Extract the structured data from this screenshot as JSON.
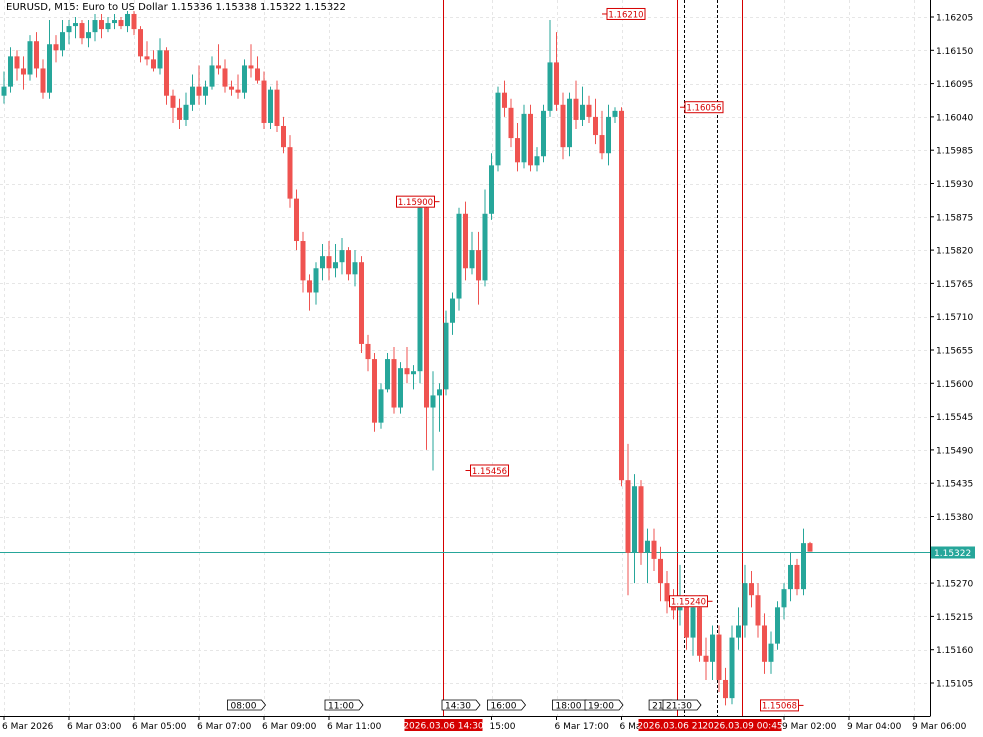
{
  "header": {
    "symbol_tf": "EURUSD, M15:",
    "description": "Euro to US Dollar",
    "ohlc": "1.15336 1.15338 1.15322 1.15322"
  },
  "colors": {
    "bull": "#26a69a",
    "bear": "#ef5350",
    "grid": "#e6e6e6",
    "current_line": "#26a69a",
    "event_line": "#d50000",
    "axis_text": "#000000"
  },
  "chart_data": {
    "type": "candlestick",
    "symbol": "EURUSD",
    "timeframe": "M15",
    "ylim": [
      1.1506,
      1.1622
    ],
    "y_ticks": [
      "1.16205",
      "1.16150",
      "1.16095",
      "1.16040",
      "1.15985",
      "1.15930",
      "1.15875",
      "1.15820",
      "1.15765",
      "1.15710",
      "1.15655",
      "1.15600",
      "1.15545",
      "1.15490",
      "1.15435",
      "1.15380",
      "1.15270",
      "1.15215",
      "1.15160",
      "1.15105"
    ],
    "x_ticks": [
      "6 Mar 2026",
      "6 Mar 03:00",
      "6 Mar 05:00",
      "6 Mar 07:00",
      "6 Mar 09:00",
      "6 Mar 11:00",
      "15:00",
      "6 Mar 17:00",
      "6 Mar 19:00",
      "9 Mar 02:00",
      "9 Mar 04:00",
      "9 Mar 06:00"
    ],
    "x_tick_bars": [
      0,
      10,
      20,
      30,
      40,
      50,
      75,
      85,
      95,
      120,
      130,
      140
    ],
    "current_price": "1.15322",
    "event_lines": [
      {
        "bar": 67.5,
        "label": "2026.03.06 14:30"
      },
      {
        "bar": 103.5,
        "label": "2026.03.06 21:45"
      },
      {
        "bar": 113.5,
        "label": "2026.03.09 00:45"
      }
    ],
    "dashed_lines": [
      104.6,
      109.7
    ],
    "session_markers": [
      {
        "bar": 37,
        "label": "08:00"
      },
      {
        "bar": 52,
        "label": "11:00"
      },
      {
        "bar": 70,
        "label": "14:30"
      },
      {
        "bar": 77,
        "label": "16:00"
      },
      {
        "bar": 87,
        "label": "18:00"
      },
      {
        "bar": 92,
        "label": "19:00"
      },
      {
        "bar": 101,
        "label": "21:"
      },
      {
        "bar": 104,
        "label": "21:30"
      }
    ],
    "price_labels": [
      {
        "bar": 92,
        "price": 1.1621,
        "text": "1.16210",
        "side": "right"
      },
      {
        "bar": 104,
        "price": 1.16056,
        "text": "1.16056",
        "side": "right"
      },
      {
        "bar": 67,
        "price": 1.159,
        "text": "1.15900",
        "side": "left"
      },
      {
        "bar": 71,
        "price": 1.15456,
        "text": "1.15456",
        "side": "right"
      },
      {
        "bar": 109,
        "price": 1.1524,
        "text": "1.15240",
        "side": "left"
      },
      {
        "bar": 123,
        "price": 1.15068,
        "text": "1.15068",
        "side": "left"
      }
    ],
    "candles": [
      [
        1.16075,
        1.16115,
        1.16062,
        1.1609
      ],
      [
        1.1609,
        1.16155,
        1.1608,
        1.1614
      ],
      [
        1.1614,
        1.1615,
        1.161,
        1.1612
      ],
      [
        1.1612,
        1.1614,
        1.16085,
        1.1611
      ],
      [
        1.1611,
        1.16175,
        1.161,
        1.16165
      ],
      [
        1.16165,
        1.1618,
        1.16105,
        1.1612
      ],
      [
        1.1612,
        1.16135,
        1.1607,
        1.1608
      ],
      [
        1.1608,
        1.162,
        1.1607,
        1.1616
      ],
      [
        1.1616,
        1.16175,
        1.1613,
        1.1615
      ],
      [
        1.1615,
        1.162,
        1.1614,
        1.1618
      ],
      [
        1.1618,
        1.162,
        1.1616,
        1.1619
      ],
      [
        1.1619,
        1.16205,
        1.1617,
        1.16195
      ],
      [
        1.16195,
        1.162,
        1.1616,
        1.1617
      ],
      [
        1.1617,
        1.162,
        1.16155,
        1.1618
      ],
      [
        1.1618,
        1.1621,
        1.16165,
        1.162
      ],
      [
        1.162,
        1.1621,
        1.1617,
        1.16185
      ],
      [
        1.16185,
        1.16205,
        1.1618,
        1.16195
      ],
      [
        1.16195,
        1.1621,
        1.16185,
        1.162
      ],
      [
        1.162,
        1.16205,
        1.16185,
        1.1619
      ],
      [
        1.1619,
        1.16215,
        1.1618,
        1.1621
      ],
      [
        1.1621,
        1.16215,
        1.16175,
        1.16185
      ],
      [
        1.16185,
        1.1619,
        1.1613,
        1.1614
      ],
      [
        1.1614,
        1.16165,
        1.16125,
        1.16135
      ],
      [
        1.16135,
        1.1615,
        1.16115,
        1.1612
      ],
      [
        1.1612,
        1.1617,
        1.1611,
        1.1615
      ],
      [
        1.1615,
        1.16155,
        1.1606,
        1.16075
      ],
      [
        1.16075,
        1.16085,
        1.1603,
        1.16055
      ],
      [
        1.16055,
        1.1607,
        1.1602,
        1.16035
      ],
      [
        1.16035,
        1.1608,
        1.16025,
        1.1606
      ],
      [
        1.1606,
        1.1611,
        1.1605,
        1.1609
      ],
      [
        1.1609,
        1.16125,
        1.1606,
        1.16075
      ],
      [
        1.16075,
        1.161,
        1.1606,
        1.1609
      ],
      [
        1.1609,
        1.1614,
        1.16085,
        1.16125
      ],
      [
        1.16125,
        1.1616,
        1.1611,
        1.1612
      ],
      [
        1.1612,
        1.16135,
        1.1608,
        1.1609
      ],
      [
        1.1609,
        1.161,
        1.16075,
        1.16085
      ],
      [
        1.16085,
        1.1611,
        1.1607,
        1.1608
      ],
      [
        1.1608,
        1.16135,
        1.1607,
        1.16125
      ],
      [
        1.16125,
        1.1616,
        1.16105,
        1.1612
      ],
      [
        1.1612,
        1.1614,
        1.16095,
        1.161
      ],
      [
        1.161,
        1.16115,
        1.1602,
        1.1603
      ],
      [
        1.1603,
        1.1609,
        1.1602,
        1.16085
      ],
      [
        1.16085,
        1.161,
        1.16015,
        1.16025
      ],
      [
        1.16025,
        1.1604,
        1.1598,
        1.1599
      ],
      [
        1.1599,
        1.1601,
        1.1589,
        1.15905
      ],
      [
        1.15905,
        1.1592,
        1.1582,
        1.15835
      ],
      [
        1.15835,
        1.1585,
        1.1575,
        1.1577
      ],
      [
        1.1577,
        1.1578,
        1.1572,
        1.1575
      ],
      [
        1.1575,
        1.158,
        1.1573,
        1.1579
      ],
      [
        1.1579,
        1.1583,
        1.1577,
        1.1581
      ],
      [
        1.1581,
        1.15835,
        1.1577,
        1.1579
      ],
      [
        1.1579,
        1.1583,
        1.15775,
        1.158
      ],
      [
        1.158,
        1.1584,
        1.1578,
        1.1582
      ],
      [
        1.1582,
        1.15825,
        1.1577,
        1.1578
      ],
      [
        1.1578,
        1.1582,
        1.1576,
        1.158
      ],
      [
        1.158,
        1.1581,
        1.1565,
        1.15665
      ],
      [
        1.15665,
        1.1568,
        1.1562,
        1.1564
      ],
      [
        1.1564,
        1.1565,
        1.1552,
        1.15535
      ],
      [
        1.15535,
        1.156,
        1.15525,
        1.1559
      ],
      [
        1.1559,
        1.1565,
        1.15585,
        1.1564
      ],
      [
        1.1564,
        1.1566,
        1.1555,
        1.1556
      ],
      [
        1.1556,
        1.15635,
        1.1555,
        1.15625
      ],
      [
        1.15625,
        1.1566,
        1.156,
        1.15615
      ],
      [
        1.15615,
        1.1563,
        1.1559,
        1.1562
      ],
      [
        1.1562,
        1.159,
        1.156,
        1.1589
      ],
      [
        1.1589,
        1.159,
        1.1549,
        1.1556
      ],
      [
        1.1556,
        1.1562,
        1.15456,
        1.1558
      ],
      [
        1.1558,
        1.156,
        1.1552,
        1.1559
      ],
      [
        1.1559,
        1.1572,
        1.1558,
        1.157
      ],
      [
        1.157,
        1.1575,
        1.1568,
        1.1574
      ],
      [
        1.1574,
        1.1589,
        1.1572,
        1.1588
      ],
      [
        1.1588,
        1.159,
        1.1577,
        1.1579
      ],
      [
        1.1579,
        1.1585,
        1.1578,
        1.1582
      ],
      [
        1.1582,
        1.1585,
        1.1573,
        1.1577
      ],
      [
        1.1577,
        1.1592,
        1.1576,
        1.1588
      ],
      [
        1.1588,
        1.1598,
        1.1587,
        1.1596
      ],
      [
        1.1596,
        1.1609,
        1.1595,
        1.1608
      ],
      [
        1.1608,
        1.161,
        1.1604,
        1.16055
      ],
      [
        1.16055,
        1.1607,
        1.1599,
        1.16005
      ],
      [
        1.16005,
        1.1603,
        1.1595,
        1.15965
      ],
      [
        1.15965,
        1.1606,
        1.15955,
        1.16045
      ],
      [
        1.16045,
        1.1606,
        1.1595,
        1.1596
      ],
      [
        1.1596,
        1.1599,
        1.1595,
        1.15975
      ],
      [
        1.15975,
        1.1606,
        1.15965,
        1.1605
      ],
      [
        1.1605,
        1.162,
        1.1604,
        1.1613
      ],
      [
        1.1613,
        1.1618,
        1.1605,
        1.1606
      ],
      [
        1.1606,
        1.1608,
        1.1597,
        1.1599
      ],
      [
        1.1599,
        1.1608,
        1.15975,
        1.1607
      ],
      [
        1.1607,
        1.161,
        1.1602,
        1.16035
      ],
      [
        1.16035,
        1.1609,
        1.16025,
        1.1606
      ],
      [
        1.1606,
        1.16075,
        1.1603,
        1.1604
      ],
      [
        1.1604,
        1.1607,
        1.15995,
        1.1601
      ],
      [
        1.1601,
        1.1605,
        1.1597,
        1.1598
      ],
      [
        1.1598,
        1.1606,
        1.1596,
        1.1604
      ],
      [
        1.1604,
        1.16056,
        1.1603,
        1.1605
      ],
      [
        1.1605,
        1.16056,
        1.1543,
        1.1544
      ],
      [
        1.1544,
        1.155,
        1.1525,
        1.1532
      ],
      [
        1.1532,
        1.1545,
        1.1527,
        1.1543
      ],
      [
        1.1543,
        1.1544,
        1.153,
        1.1532
      ],
      [
        1.1532,
        1.1536,
        1.1527,
        1.1534
      ],
      [
        1.1534,
        1.1536,
        1.1529,
        1.1531
      ],
      [
        1.1531,
        1.1533,
        1.1524,
        1.1527
      ],
      [
        1.1527,
        1.1529,
        1.1522,
        1.1524
      ],
      [
        1.1524,
        1.1526,
        1.1521,
        1.15225
      ],
      [
        1.15225,
        1.153,
        1.152,
        1.1524
      ],
      [
        1.1524,
        1.1525,
        1.1516,
        1.1518
      ],
      [
        1.1518,
        1.1524,
        1.1515,
        1.1523
      ],
      [
        1.1523,
        1.1525,
        1.1514,
        1.1515
      ],
      [
        1.1515,
        1.1518,
        1.1511,
        1.1514
      ],
      [
        1.1514,
        1.152,
        1.1511,
        1.15185
      ],
      [
        1.15185,
        1.152,
        1.1509,
        1.1511
      ],
      [
        1.1511,
        1.1513,
        1.15068,
        1.1508
      ],
      [
        1.1508,
        1.152,
        1.1507,
        1.1518
      ],
      [
        1.1518,
        1.1523,
        1.1516,
        1.152
      ],
      [
        1.152,
        1.153,
        1.1518,
        1.1527
      ],
      [
        1.1527,
        1.1529,
        1.1523,
        1.1525
      ],
      [
        1.1525,
        1.1527,
        1.1518,
        1.152
      ],
      [
        1.152,
        1.1522,
        1.1512,
        1.1514
      ],
      [
        1.1514,
        1.1519,
        1.1512,
        1.1517
      ],
      [
        1.1517,
        1.1524,
        1.1516,
        1.1523
      ],
      [
        1.1523,
        1.1527,
        1.1521,
        1.1526
      ],
      [
        1.1526,
        1.1532,
        1.1524,
        1.153
      ],
      [
        1.153,
        1.1531,
        1.1525,
        1.1526
      ],
      [
        1.1526,
        1.1536,
        1.1525,
        1.15336
      ],
      [
        1.15336,
        1.15338,
        1.15322,
        1.15322
      ]
    ]
  }
}
